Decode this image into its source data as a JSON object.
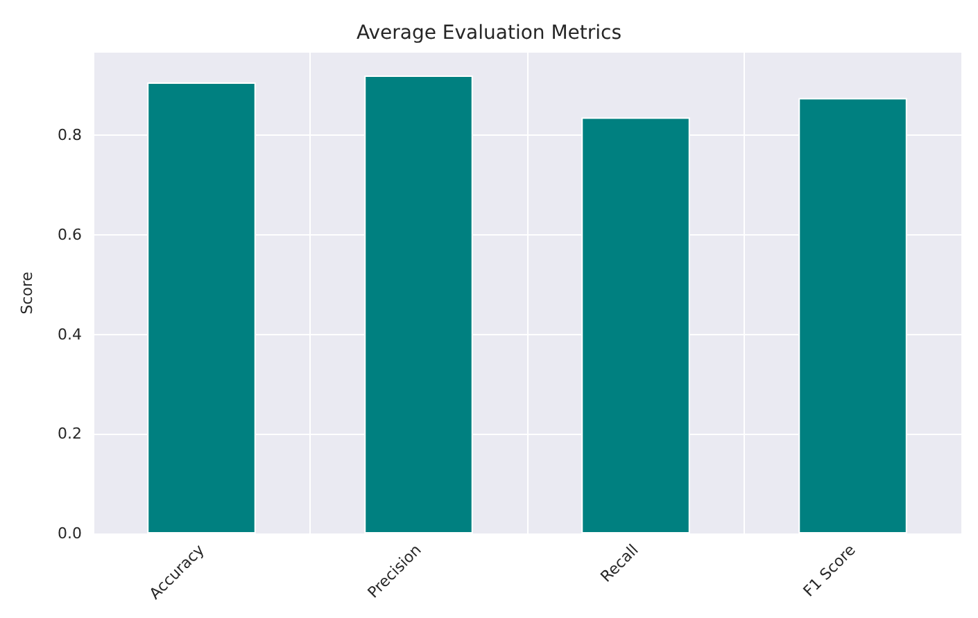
{
  "chart_data": {
    "type": "bar",
    "title": "Average Evaluation Metrics",
    "ylabel": "Score",
    "categories": [
      "Accuracy",
      "Precision",
      "Recall",
      "F1 Score"
    ],
    "values": [
      0.906,
      0.92,
      0.836,
      0.875
    ],
    "color": "#008080",
    "ylim": [
      0,
      0.966
    ],
    "yticks": [
      {
        "value": 0,
        "label": "0.0"
      },
      {
        "value": 0.2,
        "label": "0.2"
      },
      {
        "value": 0.4,
        "label": "0.4"
      },
      {
        "value": 0.6,
        "label": "0.6"
      },
      {
        "value": 0.8,
        "label": "0.8"
      }
    ],
    "grid": true
  }
}
